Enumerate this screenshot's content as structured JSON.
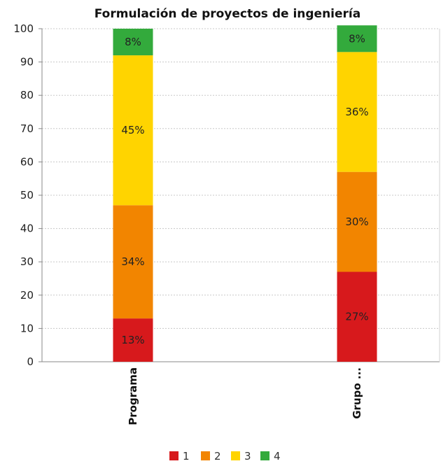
{
  "chart_data": {
    "type": "bar",
    "stacked": true,
    "title": "Formulación de proyectos de ingeniería",
    "xlabel": "",
    "ylabel": "",
    "ylim": [
      0,
      100
    ],
    "yticks": [
      0,
      10,
      20,
      30,
      40,
      50,
      60,
      70,
      80,
      90,
      100
    ],
    "grid": true,
    "legend_position": "bottom",
    "categories": [
      "Programa",
      "Grupo ..."
    ],
    "series": [
      {
        "name": "1",
        "color": "#d7191c",
        "values": [
          13,
          27
        ],
        "labels": [
          "13%",
          "27%"
        ]
      },
      {
        "name": "2",
        "color": "#f28500",
        "values": [
          34,
          30
        ],
        "labels": [
          "34%",
          "30%"
        ]
      },
      {
        "name": "3",
        "color": "#ffd400",
        "values": [
          45,
          36
        ],
        "labels": [
          "45%",
          "36%"
        ]
      },
      {
        "name": "4",
        "color": "#33aa3c",
        "values": [
          8,
          8
        ],
        "labels": [
          "8%",
          "8%"
        ]
      }
    ]
  }
}
